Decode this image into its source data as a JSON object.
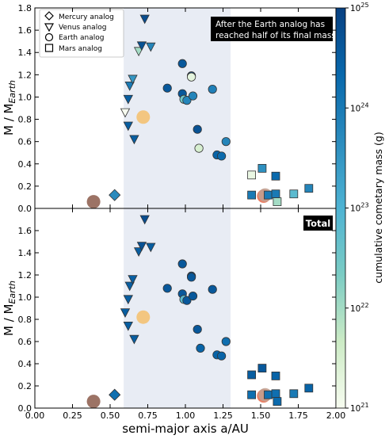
{
  "chart_data": {
    "type": "scatter",
    "shared_xlabel": "semi-major axis a/AU",
    "xlim": [
      0.0,
      2.0
    ],
    "x_ticks": [
      "0.00",
      "0.25",
      "0.50",
      "0.75",
      "1.00",
      "1.25",
      "1.50",
      "1.75",
      "2.00"
    ],
    "shaded_x_region": [
      0.59,
      1.3
    ],
    "legend": [
      {
        "marker": "diamond",
        "label": "Mercury analog"
      },
      {
        "marker": "triangle-down",
        "label": "Venus analog"
      },
      {
        "marker": "circle",
        "label": "Earth analog"
      },
      {
        "marker": "square",
        "label": "Mars analog"
      }
    ],
    "colorbar": {
      "label": "cumulative cometary mass (g)",
      "scale": "log",
      "range_exponents": [
        21,
        25
      ],
      "tick_labels": [
        {
          "base": "10",
          "exp": "21"
        },
        {
          "base": "10",
          "exp": "22"
        },
        {
          "base": "10",
          "exp": "23"
        },
        {
          "base": "10",
          "exp": "24"
        },
        {
          "base": "10",
          "exp": "25"
        }
      ],
      "colors": [
        "#f7fcf0",
        "#ccebc5",
        "#7bccc4",
        "#4eb3d3",
        "#2b8cbe",
        "#0868ac",
        "#084081"
      ]
    },
    "panels": [
      {
        "ylabel_main": "M / M",
        "ylabel_sub": "Earth",
        "ylim": [
          0,
          1.8
        ],
        "y_ticks": [
          "0.0",
          "0.2",
          "0.4",
          "0.6",
          "0.8",
          "1.0",
          "1.2",
          "1.4",
          "1.6",
          "1.8"
        ],
        "annotation": [
          "After the Earth analog has",
          "reached half of its final mass"
        ],
        "points": [
          {
            "x": 0.39,
            "y": 0.06,
            "marker": "circle",
            "color": "#8b5a4a"
          },
          {
            "x": 0.53,
            "y": 0.12,
            "marker": "diamond",
            "c": 23.7
          },
          {
            "x": 0.72,
            "y": 0.82,
            "marker": "circle",
            "color": "#f5c06b"
          },
          {
            "x": 0.6,
            "y": 0.86,
            "marker": "triangle-down",
            "c": 21.0
          },
          {
            "x": 0.62,
            "y": 0.74,
            "marker": "triangle-down",
            "c": 24.5
          },
          {
            "x": 0.66,
            "y": 0.62,
            "marker": "triangle-down",
            "c": 24.5
          },
          {
            "x": 0.62,
            "y": 0.98,
            "marker": "triangle-down",
            "c": 24.5
          },
          {
            "x": 0.63,
            "y": 1.1,
            "marker": "triangle-down",
            "c": 24.0
          },
          {
            "x": 0.65,
            "y": 1.16,
            "marker": "triangle-down",
            "c": 23.5
          },
          {
            "x": 0.69,
            "y": 1.41,
            "marker": "triangle-down",
            "c": 22.0
          },
          {
            "x": 0.71,
            "y": 1.46,
            "marker": "triangle-down",
            "c": 24.7
          },
          {
            "x": 0.73,
            "y": 1.7,
            "marker": "triangle-down",
            "c": 24.8
          },
          {
            "x": 0.77,
            "y": 1.45,
            "marker": "triangle-down",
            "c": 23.8
          },
          {
            "x": 0.88,
            "y": 1.08,
            "marker": "circle",
            "c": 24.6
          },
          {
            "x": 0.98,
            "y": 1.3,
            "marker": "circle",
            "c": 24.6
          },
          {
            "x": 0.98,
            "y": 1.03,
            "marker": "circle",
            "c": 24.6
          },
          {
            "x": 0.99,
            "y": 0.98,
            "marker": "circle",
            "c": 22.5
          },
          {
            "x": 1.01,
            "y": 0.97,
            "marker": "circle",
            "c": 23.8
          },
          {
            "x": 1.04,
            "y": 1.19,
            "marker": "circle",
            "c": 24.6
          },
          {
            "x": 1.04,
            "y": 1.18,
            "marker": "circle",
            "c": 21.3
          },
          {
            "x": 1.05,
            "y": 1.01,
            "marker": "circle",
            "c": 23.8
          },
          {
            "x": 1.08,
            "y": 0.71,
            "marker": "circle",
            "c": 24.7
          },
          {
            "x": 1.09,
            "y": 0.54,
            "marker": "circle",
            "c": 21.5
          },
          {
            "x": 1.18,
            "y": 1.07,
            "marker": "circle",
            "c": 23.9
          },
          {
            "x": 1.21,
            "y": 0.48,
            "marker": "circle",
            "c": 24.4
          },
          {
            "x": 1.24,
            "y": 0.47,
            "marker": "circle",
            "c": 24.3
          },
          {
            "x": 1.27,
            "y": 0.6,
            "marker": "circle",
            "c": 23.8
          },
          {
            "x": 1.44,
            "y": 0.3,
            "marker": "square",
            "c": 21.2
          },
          {
            "x": 1.44,
            "y": 0.12,
            "marker": "square",
            "c": 24.0
          },
          {
            "x": 1.51,
            "y": 0.36,
            "marker": "square",
            "c": 23.6
          },
          {
            "x": 1.52,
            "y": 0.11,
            "marker": "circle",
            "color": "#e86a4a"
          },
          {
            "x": 1.53,
            "y": 0.12,
            "marker": "circle",
            "color": "#c0a090"
          },
          {
            "x": 1.55,
            "y": 0.12,
            "marker": "square",
            "c": 24.0
          },
          {
            "x": 1.6,
            "y": 0.29,
            "marker": "square",
            "c": 24.3
          },
          {
            "x": 1.6,
            "y": 0.13,
            "marker": "square",
            "c": 24.0
          },
          {
            "x": 1.61,
            "y": 0.06,
            "marker": "square",
            "c": 22.0
          },
          {
            "x": 1.72,
            "y": 0.13,
            "marker": "square",
            "c": 22.8
          },
          {
            "x": 1.82,
            "y": 0.18,
            "marker": "square",
            "c": 23.8
          }
        ]
      },
      {
        "ylabel_main": "M / M",
        "ylabel_sub": "Earth",
        "ylim": [
          0,
          1.8
        ],
        "y_ticks": [
          "0.0",
          "0.2",
          "0.4",
          "0.6",
          "0.8",
          "1.0",
          "1.2",
          "1.4",
          "1.6"
        ],
        "annotation": [
          "Total"
        ],
        "points": [
          {
            "x": 0.39,
            "y": 0.06,
            "marker": "circle",
            "color": "#8b5a4a"
          },
          {
            "x": 0.53,
            "y": 0.12,
            "marker": "diamond",
            "c": 24.2
          },
          {
            "x": 0.72,
            "y": 0.82,
            "marker": "circle",
            "color": "#f5c06b"
          },
          {
            "x": 0.6,
            "y": 0.86,
            "marker": "triangle-down",
            "c": 24.5
          },
          {
            "x": 0.62,
            "y": 0.74,
            "marker": "triangle-down",
            "c": 24.5
          },
          {
            "x": 0.66,
            "y": 0.62,
            "marker": "triangle-down",
            "c": 24.5
          },
          {
            "x": 0.62,
            "y": 0.98,
            "marker": "triangle-down",
            "c": 24.5
          },
          {
            "x": 0.63,
            "y": 1.1,
            "marker": "triangle-down",
            "c": 24.5
          },
          {
            "x": 0.65,
            "y": 1.16,
            "marker": "triangle-down",
            "c": 24.5
          },
          {
            "x": 0.69,
            "y": 1.41,
            "marker": "triangle-down",
            "c": 24.5
          },
          {
            "x": 0.71,
            "y": 1.46,
            "marker": "triangle-down",
            "c": 24.7
          },
          {
            "x": 0.73,
            "y": 1.7,
            "marker": "triangle-down",
            "c": 24.8
          },
          {
            "x": 0.77,
            "y": 1.45,
            "marker": "triangle-down",
            "c": 24.5
          },
          {
            "x": 0.88,
            "y": 1.08,
            "marker": "circle",
            "c": 24.6
          },
          {
            "x": 0.98,
            "y": 1.3,
            "marker": "circle",
            "c": 24.6
          },
          {
            "x": 0.98,
            "y": 1.03,
            "marker": "circle",
            "c": 24.6
          },
          {
            "x": 0.99,
            "y": 0.98,
            "marker": "circle",
            "c": 22.8
          },
          {
            "x": 1.01,
            "y": 0.97,
            "marker": "circle",
            "c": 24.6
          },
          {
            "x": 1.04,
            "y": 1.19,
            "marker": "circle",
            "c": 24.6
          },
          {
            "x": 1.04,
            "y": 1.18,
            "marker": "circle",
            "c": 24.6
          },
          {
            "x": 1.05,
            "y": 1.01,
            "marker": "circle",
            "c": 24.6
          },
          {
            "x": 1.08,
            "y": 0.71,
            "marker": "circle",
            "c": 24.6
          },
          {
            "x": 1.1,
            "y": 0.54,
            "marker": "circle",
            "c": 24.4
          },
          {
            "x": 1.18,
            "y": 1.07,
            "marker": "circle",
            "c": 24.6
          },
          {
            "x": 1.21,
            "y": 0.48,
            "marker": "circle",
            "c": 24.4
          },
          {
            "x": 1.24,
            "y": 0.47,
            "marker": "circle",
            "c": 24.4
          },
          {
            "x": 1.27,
            "y": 0.6,
            "marker": "circle",
            "c": 24.2
          },
          {
            "x": 1.44,
            "y": 0.3,
            "marker": "square",
            "c": 24.5
          },
          {
            "x": 1.44,
            "y": 0.12,
            "marker": "square",
            "c": 24.2
          },
          {
            "x": 1.51,
            "y": 0.36,
            "marker": "square",
            "c": 24.6
          },
          {
            "x": 1.52,
            "y": 0.11,
            "marker": "circle",
            "color": "#e86a4a"
          },
          {
            "x": 1.53,
            "y": 0.12,
            "marker": "circle",
            "color": "#c0a090"
          },
          {
            "x": 1.55,
            "y": 0.12,
            "marker": "square",
            "c": 24.2
          },
          {
            "x": 1.6,
            "y": 0.29,
            "marker": "square",
            "c": 24.4
          },
          {
            "x": 1.6,
            "y": 0.13,
            "marker": "square",
            "c": 24.2
          },
          {
            "x": 1.61,
            "y": 0.06,
            "marker": "square",
            "c": 24.3
          },
          {
            "x": 1.72,
            "y": 0.13,
            "marker": "square",
            "c": 24.0
          },
          {
            "x": 1.82,
            "y": 0.18,
            "marker": "square",
            "c": 24.4
          }
        ]
      }
    ]
  }
}
